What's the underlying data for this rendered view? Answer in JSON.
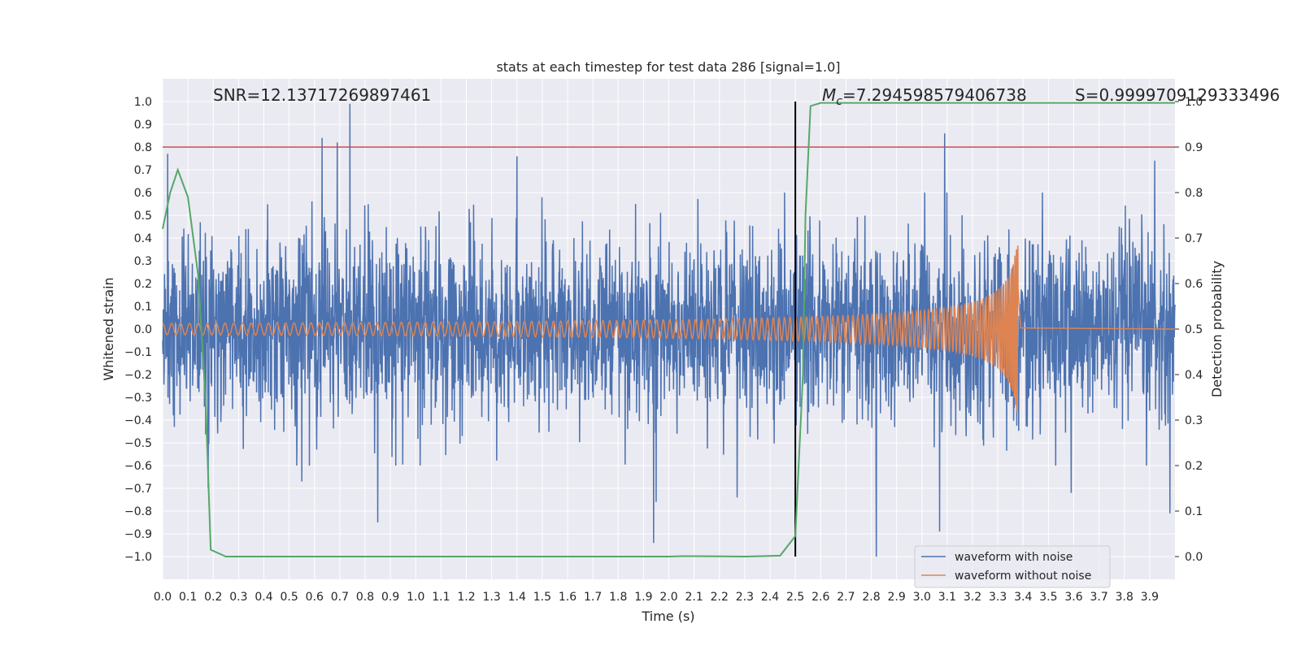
{
  "chart_data": {
    "type": "line",
    "title": "stats at each timestep for test data 286 [signal=1.0]",
    "xlabel": "Time (s)",
    "ylabel": "Whitened strain",
    "y2label": "Detection probability",
    "xlim": [
      0.0,
      4.0
    ],
    "ylim": [
      -1.1,
      1.1
    ],
    "y2lim": [
      -0.05,
      1.05
    ],
    "x_ticks": [
      "0.0",
      "0.1",
      "0.2",
      "0.3",
      "0.4",
      "0.5",
      "0.6",
      "0.7",
      "0.8",
      "0.9",
      "1.0",
      "1.1",
      "1.2",
      "1.3",
      "1.4",
      "1.5",
      "1.6",
      "1.7",
      "1.8",
      "1.9",
      "2.0",
      "2.1",
      "2.2",
      "2.3",
      "2.4",
      "2.5",
      "2.6",
      "2.7",
      "2.8",
      "2.9",
      "3.0",
      "3.1",
      "3.2",
      "3.3",
      "3.4",
      "3.5",
      "3.6",
      "3.7",
      "3.8",
      "3.9"
    ],
    "y_ticks": [
      "1.0",
      "0.9",
      "0.8",
      "0.7",
      "0.6",
      "0.5",
      "0.4",
      "0.3",
      "0.2",
      "0.1",
      "0.0",
      "−0.1",
      "−0.2",
      "−0.3",
      "−0.4",
      "−0.5",
      "−0.6",
      "−0.7",
      "−0.8",
      "−0.9",
      "−1.0"
    ],
    "y2_ticks": [
      "1.0",
      "0.9",
      "0.8",
      "0.7",
      "0.6",
      "0.5",
      "0.4",
      "0.3",
      "0.2",
      "0.1",
      "0.0"
    ],
    "grid": true,
    "legend_position": "bottom-right",
    "annotations": {
      "snr": "SNR=12.13717269897461",
      "mc_symbol": "M",
      "mc_subscript": "c",
      "mc_value": "=7.294598579406738",
      "s": "S=0.9999709129333496"
    },
    "vertical_line_x": 2.5,
    "threshold_probability": 0.9,
    "series": [
      {
        "name": "waveform with noise",
        "color": "#4c72b0",
        "axis": "left",
        "kind": "noise",
        "sigma": 0.2,
        "x_range": [
          0.0,
          4.0
        ],
        "peaks": [
          {
            "x": 0.02,
            "y": 0.77
          },
          {
            "x": 0.74,
            "y": 0.99
          },
          {
            "x": 0.63,
            "y": 0.84
          },
          {
            "x": 0.69,
            "y": 0.82
          },
          {
            "x": 1.4,
            "y": 0.76
          },
          {
            "x": 3.09,
            "y": 0.86
          },
          {
            "x": 2.82,
            "y": 0.82
          },
          {
            "x": 3.92,
            "y": 0.74
          },
          {
            "x": 0.18,
            "y": -0.7
          },
          {
            "x": 0.85,
            "y": -0.85
          },
          {
            "x": 1.94,
            "y": -0.94
          },
          {
            "x": 2.82,
            "y": -1.0
          },
          {
            "x": 3.07,
            "y": -0.89
          },
          {
            "x": 3.98,
            "y": -0.81
          },
          {
            "x": 2.27,
            "y": -0.74
          },
          {
            "x": 3.59,
            "y": -0.72
          },
          {
            "x": 0.55,
            "y": -0.67
          },
          {
            "x": 1.95,
            "y": -0.76
          }
        ]
      },
      {
        "name": "waveform without noise",
        "color": "#dd8452",
        "axis": "left",
        "kind": "chirp",
        "x_range": [
          0.0,
          3.38
        ],
        "start_amplitude": 0.025,
        "peak_amplitude": 0.38,
        "merger_x": 3.38
      },
      {
        "name": "detection probability",
        "color": "#55a868",
        "axis": "right",
        "kind": "polyline",
        "x": [
          0.0,
          0.03,
          0.06,
          0.1,
          0.14,
          0.17,
          0.19,
          0.25,
          0.5,
          1.0,
          1.5,
          2.0,
          2.05,
          2.1,
          2.3,
          2.44,
          2.5,
          2.53,
          2.54,
          2.56,
          2.6,
          3.0,
          3.5,
          4.0
        ],
        "y": [
          0.72,
          0.8,
          0.85,
          0.79,
          0.62,
          0.34,
          0.015,
          0.0,
          0.0,
          0.0,
          0.0,
          0.0,
          0.001,
          0.001,
          0.0,
          0.002,
          0.045,
          0.4,
          0.75,
          0.99,
          0.997,
          0.997,
          0.997,
          0.997
        ]
      }
    ],
    "colors": {
      "background": "#eaeaf2",
      "grid": "#ffffff",
      "threshold_line": "#c44e52",
      "vertical_line": "#000000"
    }
  }
}
